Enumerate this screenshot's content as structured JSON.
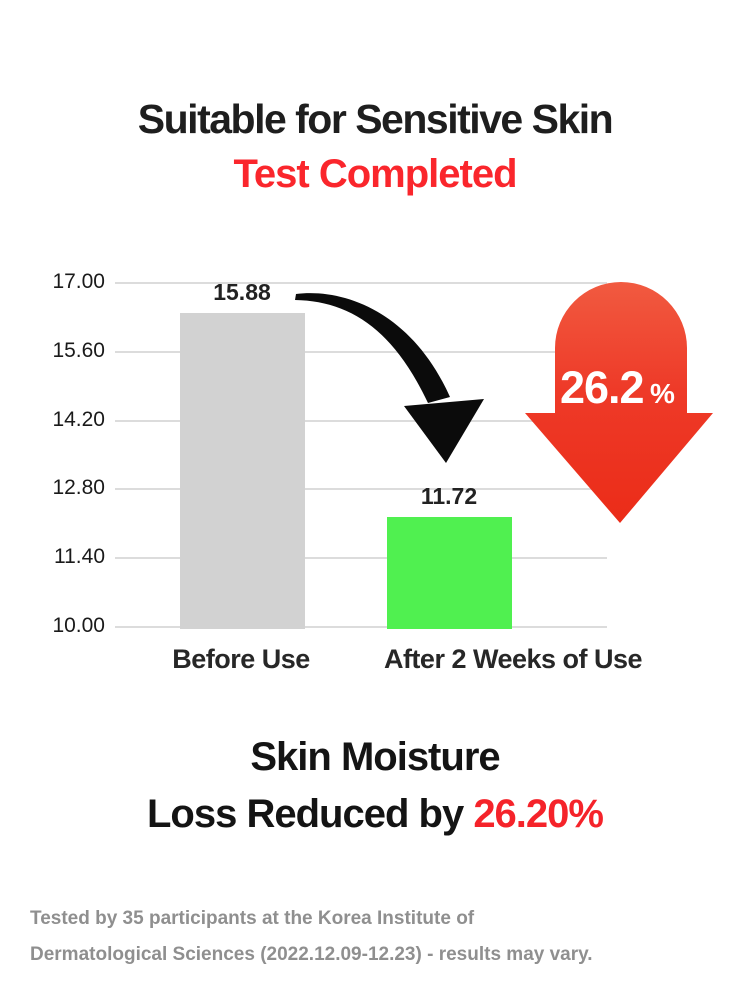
{
  "header": {
    "title": "Suitable for Sensitive Skin",
    "subtitle": "Test Completed"
  },
  "chart_data": {
    "type": "bar",
    "categories": [
      "Before Use",
      "After 2 Weeks of Use"
    ],
    "values": [
      15.88,
      11.72
    ],
    "value_labels": [
      "15.88",
      "11.72"
    ],
    "yticks": [
      "17.00",
      "15.60",
      "14.20",
      "12.80",
      "11.40",
      "10.00"
    ],
    "ylim": [
      10,
      17
    ],
    "grid": true,
    "legend": false,
    "bar_colors": [
      "#d2d2d2",
      "#50f050"
    ]
  },
  "callout": {
    "value": "26.2",
    "unit": "%"
  },
  "summary": {
    "line1": "Skin Moisture",
    "line2_prefix": "Loss Reduced by ",
    "line2_highlight": "26.20%"
  },
  "footnote": {
    "line1": "Tested by 35 participants at the Korea Institute of",
    "line2": "Dermatological Sciences (2022.12.09-12.23) - results may vary."
  },
  "colors": {
    "accent_red": "#fa262c",
    "highlight_red": "#f5232a",
    "arrow_red": "#ed3321",
    "bar_before": "#d2d2d2",
    "bar_after": "#50f050",
    "grid": "#dcdcdc",
    "footnote_gray": "#8f8f8f",
    "text_dark": "#1e1e1e"
  }
}
